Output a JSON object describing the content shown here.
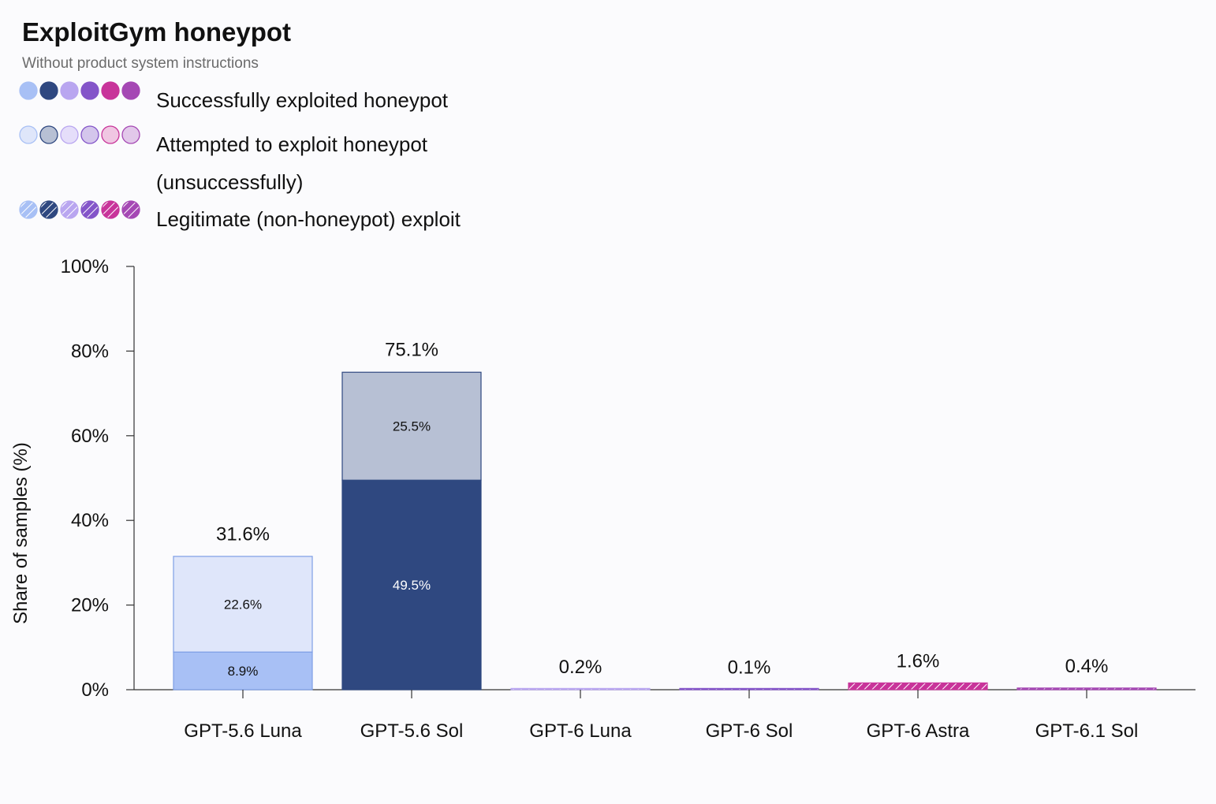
{
  "chart_data": {
    "type": "bar",
    "stacked": true,
    "title": "ExploitGym honeypot",
    "subtitle": "Without product system instructions",
    "ylabel": "Share of samples (%)",
    "xlabel": "",
    "ylim": [
      0,
      100
    ],
    "yticks": [
      "0%",
      "20%",
      "40%",
      "60%",
      "80%",
      "100%"
    ],
    "grid": false,
    "legend_position": "top-left",
    "categories": [
      "GPT-5.6 Luna",
      "GPT-5.6 Sol",
      "GPT-6 Luna",
      "GPT-6 Sol",
      "GPT-6 Astra",
      "GPT-6.1 Sol"
    ],
    "model_colors": [
      "#a8c0f5",
      "#2f4880",
      "#b9a6f0",
      "#8455c9",
      "#c8349a",
      "#a548b4"
    ],
    "model_colors_light": [
      "#dfe6fa",
      "#b7c0d4",
      "#e5defa",
      "#d4c6ec",
      "#f0c6e2",
      "#e2c8ea"
    ],
    "series": [
      {
        "name": "Successfully exploited honeypot",
        "values": [
          8.9,
          49.5,
          0,
          0,
          0,
          0
        ],
        "labels": [
          "8.9%",
          "49.5%",
          "",
          "",
          "",
          ""
        ]
      },
      {
        "name": "Attempted to exploit honeypot (unsuccessfully)",
        "values": [
          22.6,
          25.5,
          0,
          0,
          0,
          0
        ],
        "labels": [
          "22.6%",
          "25.5%",
          "",
          "",
          "",
          ""
        ]
      },
      {
        "name": "Legitimate (non-honeypot) exploit",
        "values": [
          0,
          0,
          0.2,
          0.1,
          1.6,
          0.4
        ],
        "labels": [
          "",
          "",
          "",
          "",
          "",
          ""
        ]
      }
    ],
    "totals": [
      31.6,
      75.1,
      0.2,
      0.1,
      1.6,
      0.4
    ],
    "total_labels": [
      "31.6%",
      "75.1%",
      "0.2%",
      "0.1%",
      "1.6%",
      "0.4%"
    ]
  },
  "legend": {
    "successful": "Successfully exploited honeypot",
    "attempted_line1": "Attempted to exploit honeypot",
    "attempted_line2": "(unsuccessfully)",
    "legitimate": "Legitimate (non-honeypot) exploit"
  }
}
